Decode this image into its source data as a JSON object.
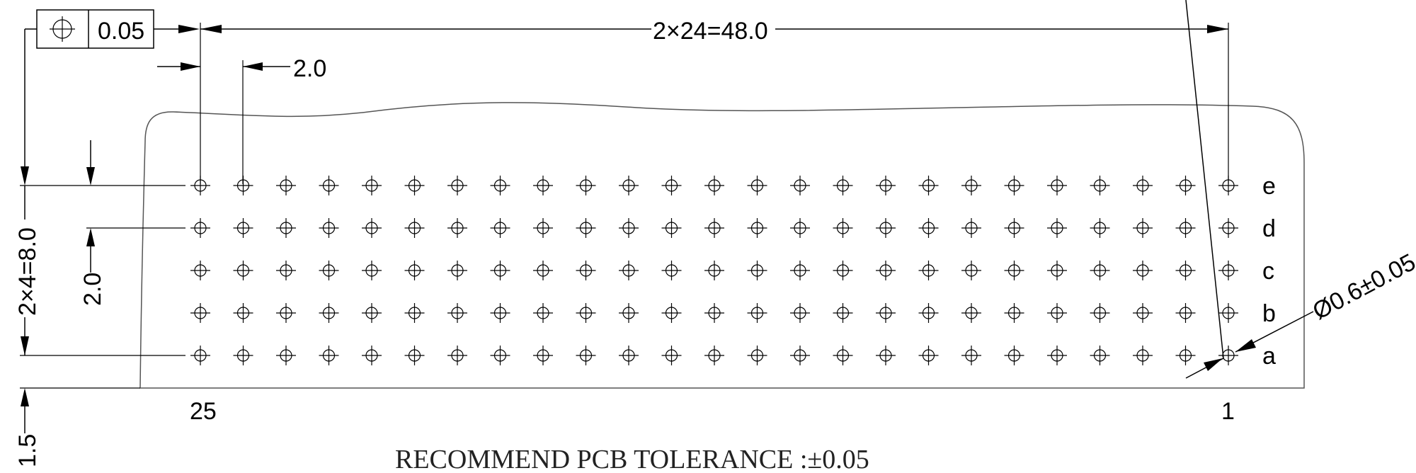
{
  "tolerance_frame": {
    "symbol": "position-tolerance-icon",
    "value": "0.05"
  },
  "dimensions": {
    "overall_width": "2×24=48.0",
    "pitch_horizontal": "2.0",
    "overall_height": "2×4=8.0",
    "pitch_vertical": "2.0",
    "edge_offset": "1.5",
    "hole_diameter": "Ø0.6±0.05"
  },
  "rows": [
    "e",
    "d",
    "c",
    "b",
    "a"
  ],
  "columns": {
    "count": 25,
    "left_label": "25",
    "right_label": "1"
  },
  "note": "RECOMMEND PCB TOLERANCE :±0.05"
}
